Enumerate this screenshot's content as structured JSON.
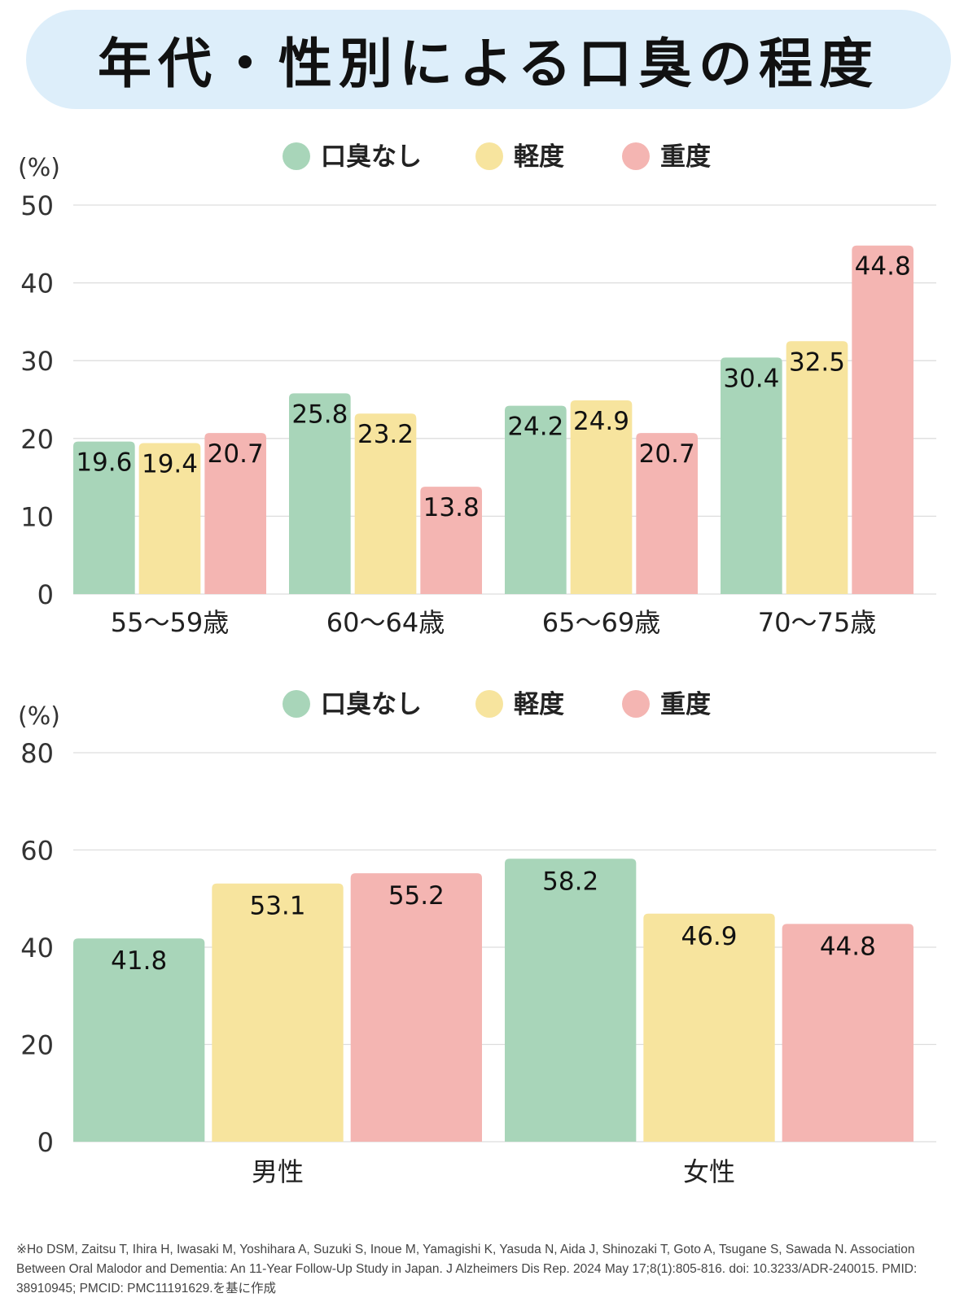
{
  "title": "年代・性別による口臭の程度",
  "citation": "※Ho DSM, Zaitsu T, Ihira H, Iwasaki M, Yoshihara A, Suzuki S, Inoue M, Yamagishi K, Yasuda N, Aida J, Shinozaki T, Goto A, Tsugane S, Sawada N. Association Between Oral Malodor and Dementia: An 11-Year Follow-Up Study in Japan. J Alzheimers Dis Rep. 2024 May 17;8(1):805-816. doi: 10.3233/ADR-240015. PMID: 38910945; PMCID: PMC11191629.を基に作成",
  "colors": {
    "none": "#a8d5b9",
    "mild": "#f7e49e",
    "severe": "#f4b5b2",
    "grid": "#dddddd",
    "axis_text": "#333333"
  },
  "chart_data": [
    {
      "type": "bar",
      "ylabel": "(%)",
      "ylim": [
        0,
        50
      ],
      "yticks": [
        0,
        10,
        20,
        30,
        40,
        50
      ],
      "categories": [
        "55〜59歳",
        "60〜64歳",
        "65〜69歳",
        "70〜75歳"
      ],
      "series": [
        {
          "name": "口臭なし",
          "color_key": "none",
          "values": [
            19.6,
            25.8,
            24.2,
            30.4
          ]
        },
        {
          "name": "軽度",
          "color_key": "mild",
          "values": [
            19.4,
            23.2,
            24.9,
            32.5
          ]
        },
        {
          "name": "重度",
          "color_key": "severe",
          "values": [
            20.7,
            13.8,
            20.7,
            44.8
          ]
        }
      ],
      "grid": true,
      "legend": "top-center"
    },
    {
      "type": "bar",
      "ylabel": "(%)",
      "ylim": [
        0,
        80
      ],
      "yticks": [
        0,
        20,
        40,
        60,
        80
      ],
      "categories": [
        "男性",
        "女性"
      ],
      "series": [
        {
          "name": "口臭なし",
          "color_key": "none",
          "values": [
            41.8,
            58.2
          ]
        },
        {
          "name": "軽度",
          "color_key": "mild",
          "values": [
            53.1,
            46.9
          ]
        },
        {
          "name": "重度",
          "color_key": "severe",
          "values": [
            55.2,
            44.8
          ]
        }
      ],
      "grid": true,
      "legend": "top-center"
    }
  ]
}
